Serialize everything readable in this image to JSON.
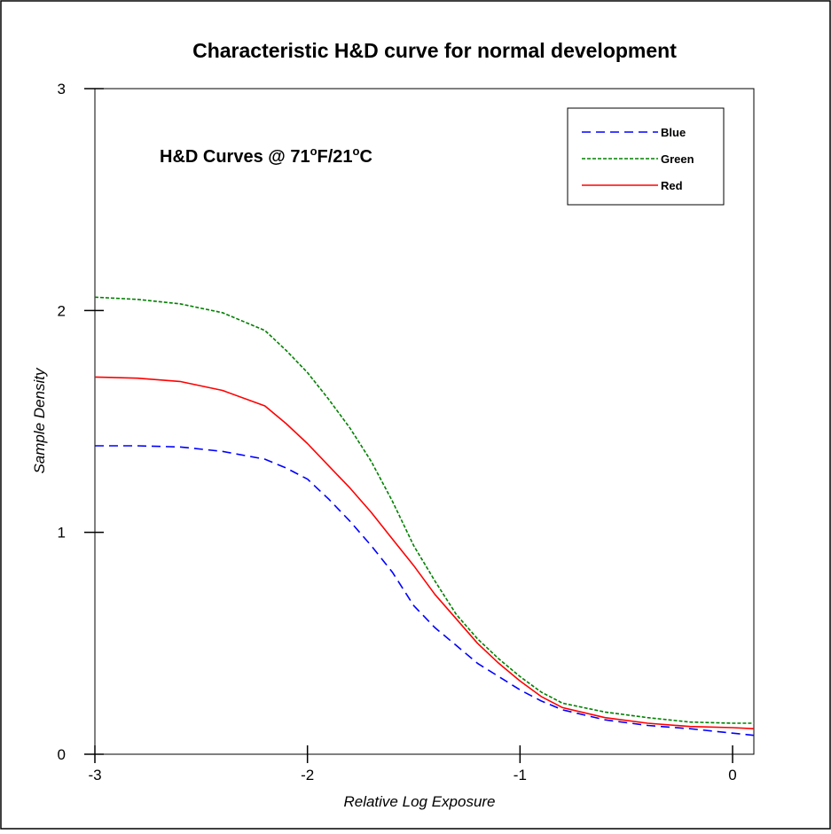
{
  "chart_data": {
    "type": "line",
    "title": "Characteristic H&D curve for normal development",
    "xlabel": "Relative Log Exposure",
    "ylabel": "Sample Density",
    "xlim": [
      -3,
      0.1
    ],
    "ylim": [
      0,
      3
    ],
    "x_ticks": [
      -3,
      -2,
      -1,
      0
    ],
    "y_ticks": [
      0,
      1,
      2,
      3
    ],
    "annotation": {
      "prefix": "H&D Curves @ 71",
      "deg1": "o",
      "mid": "F/21",
      "deg2": "o",
      "suffix": "C"
    },
    "legend_position": "top-right",
    "grid": false,
    "series": [
      {
        "name": "Blue",
        "color": "#0000ff",
        "dash": "dashed",
        "x": [
          -3.0,
          -2.8,
          -2.6,
          -2.4,
          -2.2,
          -2.1,
          -2.0,
          -1.9,
          -1.8,
          -1.7,
          -1.6,
          -1.5,
          -1.4,
          -1.3,
          -1.2,
          -1.1,
          -1.0,
          -0.9,
          -0.8,
          -0.6,
          -0.4,
          -0.2,
          0.0,
          0.1
        ],
        "values": [
          1.39,
          1.39,
          1.385,
          1.365,
          1.33,
          1.29,
          1.24,
          1.15,
          1.05,
          0.94,
          0.82,
          0.67,
          0.57,
          0.49,
          0.41,
          0.35,
          0.29,
          0.24,
          0.2,
          0.155,
          0.13,
          0.115,
          0.095,
          0.085
        ]
      },
      {
        "name": "Green",
        "color": "#008000",
        "dash": "dotted",
        "x": [
          -3.0,
          -2.8,
          -2.6,
          -2.4,
          -2.2,
          -2.1,
          -2.0,
          -1.9,
          -1.8,
          -1.7,
          -1.6,
          -1.5,
          -1.4,
          -1.3,
          -1.2,
          -1.1,
          -1.0,
          -0.9,
          -0.8,
          -0.6,
          -0.4,
          -0.2,
          0.0,
          0.1
        ],
        "values": [
          2.06,
          2.05,
          2.03,
          1.99,
          1.91,
          1.82,
          1.72,
          1.6,
          1.47,
          1.32,
          1.14,
          0.94,
          0.78,
          0.63,
          0.52,
          0.43,
          0.35,
          0.28,
          0.23,
          0.19,
          0.165,
          0.145,
          0.14,
          0.14
        ]
      },
      {
        "name": "Red",
        "color": "#ff0000",
        "dash": "solid",
        "x": [
          -3.0,
          -2.8,
          -2.6,
          -2.4,
          -2.2,
          -2.1,
          -2.0,
          -1.9,
          -1.8,
          -1.7,
          -1.6,
          -1.5,
          -1.4,
          -1.3,
          -1.2,
          -1.1,
          -1.0,
          -0.9,
          -0.8,
          -0.6,
          -0.4,
          -0.2,
          0.0,
          0.1
        ],
        "values": [
          1.7,
          1.695,
          1.68,
          1.64,
          1.57,
          1.49,
          1.4,
          1.3,
          1.2,
          1.09,
          0.97,
          0.85,
          0.72,
          0.61,
          0.5,
          0.41,
          0.33,
          0.26,
          0.21,
          0.165,
          0.14,
          0.125,
          0.12,
          0.115
        ]
      }
    ]
  }
}
